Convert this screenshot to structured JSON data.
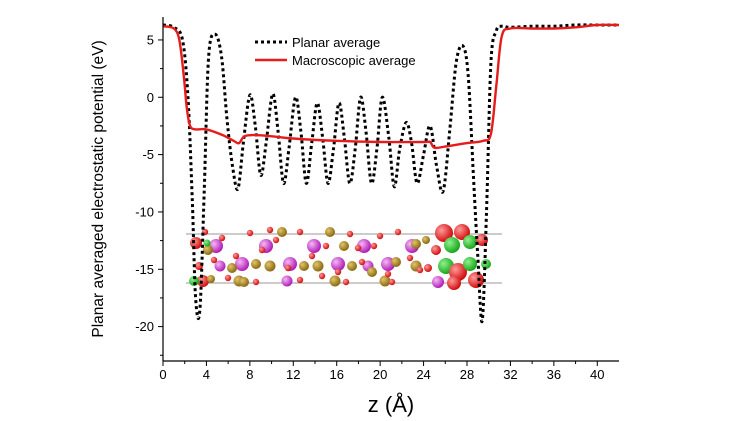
{
  "chart_data": {
    "type": "line",
    "xlabel": "z (Å)",
    "ylabel": "Planar averaged electrostatic potential (eV)",
    "xlim": [
      0,
      42
    ],
    "ylim": [
      -23,
      7
    ],
    "x_ticks": [
      0,
      4,
      8,
      12,
      16,
      20,
      24,
      28,
      32,
      36,
      40
    ],
    "y_ticks": [
      5,
      0,
      -5,
      -10,
      -15,
      -20
    ],
    "legend_position": "top-center",
    "grid": false,
    "series": [
      {
        "name": "Planar average",
        "color": "#000000",
        "style": "dotted",
        "x": [
          0.0,
          1.0,
          1.8,
          2.3,
          2.7,
          3.0,
          3.4,
          3.8,
          4.2,
          4.8,
          5.4,
          5.9,
          6.4,
          6.9,
          7.4,
          8.0,
          8.5,
          9.0,
          9.5,
          10.1,
          10.6,
          11.1,
          11.6,
          12.2,
          12.7,
          13.2,
          13.7,
          14.2,
          14.7,
          15.2,
          15.7,
          16.2,
          16.7,
          17.2,
          17.7,
          18.2,
          18.7,
          19.2,
          19.7,
          20.2,
          20.8,
          21.3,
          21.8,
          22.4,
          22.9,
          23.4,
          24.0,
          24.6,
          25.2,
          25.8,
          26.4,
          27.0,
          27.6,
          28.1,
          28.6,
          29.0,
          29.4,
          29.8,
          30.2,
          30.7,
          31.2,
          32.0,
          34.0,
          36.0,
          38.0,
          40.0,
          42.0
        ],
        "y": [
          6.3,
          6.1,
          5.0,
          0.0,
          -9.0,
          -17.5,
          -18.5,
          -8.0,
          3.5,
          5.5,
          3.5,
          -2.0,
          -6.0,
          -8.0,
          -4.0,
          0.2,
          -2.5,
          -6.8,
          -4.0,
          0.3,
          -3.0,
          -7.5,
          -4.5,
          0.0,
          -3.0,
          -7.5,
          -4.0,
          -0.5,
          -3.5,
          -7.5,
          -4.5,
          -0.5,
          -3.5,
          -7.5,
          -4.5,
          0.0,
          -3.0,
          -7.5,
          -4.5,
          0.0,
          -3.5,
          -7.8,
          -4.5,
          -2.2,
          -4.0,
          -7.5,
          -5.0,
          -2.5,
          -6.0,
          -8.2,
          -3.0,
          3.0,
          4.5,
          2.0,
          -7.0,
          -14.0,
          -19.5,
          -10.0,
          3.0,
          5.8,
          6.2,
          6.1,
          6.2,
          6.2,
          6.3,
          6.3,
          6.3
        ]
      },
      {
        "name": "Macroscopic average",
        "color": "#e81b1b",
        "style": "solid",
        "x": [
          0.0,
          1.0,
          1.5,
          1.9,
          2.2,
          2.5,
          3.0,
          4.0,
          5.5,
          6.5,
          7.0,
          7.5,
          8.5,
          10.0,
          12.0,
          16.0,
          20.0,
          24.0,
          24.6,
          25.0,
          26.0,
          28.0,
          29.5,
          30.2,
          30.7,
          31.2,
          32.0,
          34.0,
          36.0,
          38.0,
          40.0,
          42.0
        ],
        "y": [
          6.2,
          6.0,
          5.0,
          2.0,
          -1.0,
          -2.5,
          -2.8,
          -2.8,
          -3.3,
          -3.8,
          -4.0,
          -3.4,
          -3.3,
          -3.4,
          -3.6,
          -3.8,
          -3.9,
          -3.9,
          -3.9,
          -4.4,
          -4.3,
          -4.0,
          -3.8,
          -3.2,
          1.0,
          5.3,
          6.0,
          6.0,
          6.0,
          6.1,
          6.3,
          6.3
        ]
      }
    ]
  }
}
